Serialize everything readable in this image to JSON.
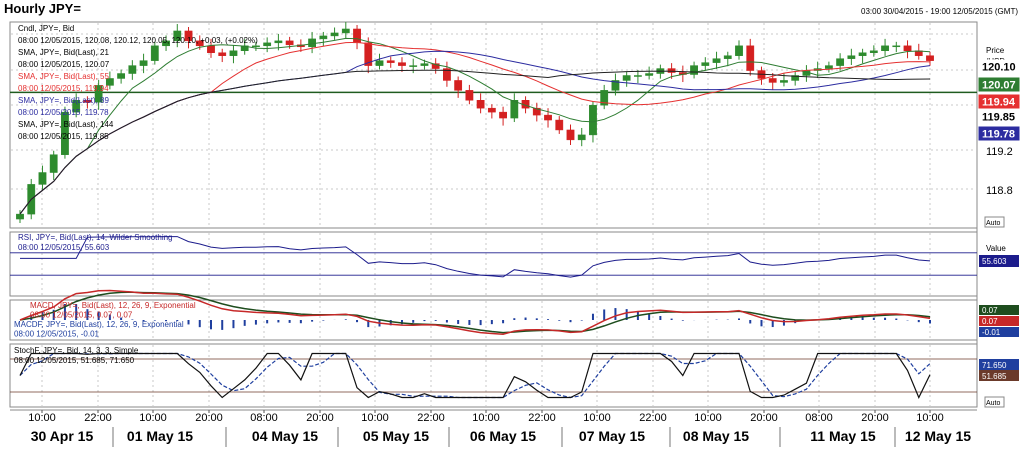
{
  "window": {
    "title": "Hourly JPY=",
    "date_range": "03:00 30/04/2015 - 19:00 12/05/2015 (GMT)"
  },
  "colors": {
    "candle_up": "#2e8b2e",
    "candle_down": "#d42020",
    "sma21": "#2e7d32",
    "sma55": "#e53030",
    "sma89": "#2c2ca0",
    "sma144": "#222222",
    "hline": "#1f5c1f",
    "rsi": "#1c1c8c",
    "macd": "#c62828",
    "macd_signal": "#1e4d1e",
    "macd_hist": "#1f3f9f",
    "stoch_k": "#111111",
    "stoch_d": "#1f3f9f",
    "ref_line": "#6b3a2a"
  },
  "legend": {
    "main": [
      {
        "text": "Cndl, JPY=, Bid",
        "color": "#000000"
      },
      {
        "text": "08:00 12/05/2015, 120.08, 120.12, 120.05, 120.10, +0.03, (+0.02%)",
        "color": "#000000"
      },
      {
        "text": "SMA, JPY=, Bid(Last), 21",
        "color": "#000000"
      },
      {
        "text": "08:00 12/05/2015, 120.07",
        "color": "#000000"
      },
      {
        "text": "SMA, JPY=, Bid(Last), 55",
        "color": "#e53030"
      },
      {
        "text": "08:00 12/05/2015, 119.94",
        "color": "#e53030"
      },
      {
        "text": "SMA, JPY=, Bid(Last), 89",
        "color": "#2c2ca0"
      },
      {
        "text": "08:00 12/05/2015, 119.78",
        "color": "#2c2ca0"
      },
      {
        "text": "SMA, JPY=, Bid(Last), 144",
        "color": "#000000"
      },
      {
        "text": "08:00 12/05/2015, 119.85",
        "color": "#000000"
      }
    ],
    "rsi": [
      {
        "text": "RSI, JPY=, Bid(Last), 14, Wilder Smoothing",
        "color": "#1c1c8c"
      },
      {
        "text": "08:00 12/05/2015, 55.603",
        "color": "#1c1c8c"
      }
    ],
    "macd": [
      {
        "text": "MACD, JPY=, Bid(Last), 12, 26, 9, Exponential",
        "color": "#c62828"
      },
      {
        "text": "08:00 12/05/2015, 0.07, 0.07",
        "color": "#c62828"
      },
      {
        "text": "MACDF, JPY=, Bid(Last), 12, 26, 9, Exponential",
        "color": "#1f3f9f"
      },
      {
        "text": "08:00 12/05/2015, -0.01",
        "color": "#1f3f9f"
      }
    ],
    "stoch": [
      {
        "text": "StochF, JPY=, Bid, 14, 3, 3, Simple",
        "color": "#000000"
      },
      {
        "text": "08:00 12/05/2015, 51.685, 71.650",
        "color": "#000000"
      }
    ]
  },
  "axis": {
    "price_label": "Price",
    "currency_label": "/USD",
    "value_label": "Value",
    "auto_label": "Auto",
    "price_ticks": [
      "119.2",
      "118.8"
    ],
    "flags": [
      {
        "text": "120.10",
        "bg": "#ffffff",
        "fg": "#000000",
        "bold": true
      },
      {
        "text": "120.07",
        "bg": "#2e7d32",
        "fg": "#ffffff",
        "bold": true
      },
      {
        "text": "119.94",
        "bg": "#e53030",
        "fg": "#ffffff",
        "bold": true
      },
      {
        "text": "119.85",
        "bg": "#ffffff",
        "fg": "#000000",
        "bold": true
      },
      {
        "text": "119.78",
        "bg": "#2c2ca0",
        "fg": "#ffffff",
        "bold": true
      }
    ],
    "rsi_flag": "55.603",
    "macd_flags": [
      "0.07",
      "0.07",
      "-0.01"
    ],
    "stoch_flags": [
      "71.650",
      "51.685"
    ],
    "time_ticks": [
      "10:00",
      "22:00",
      "10:00",
      "20:00",
      "08:00",
      "20:00",
      "10:00",
      "22:00",
      "10:00",
      "22:00",
      "10:00",
      "22:00",
      "10:00",
      "20:00",
      "08:00",
      "20:00",
      "10:00"
    ],
    "date_labels": [
      "30 Apr 15",
      "01 May 15",
      "04 May 15",
      "05 May 15",
      "06 May 15",
      "07 May 15",
      "08 May 15",
      "11 May 15",
      "12 May 15"
    ]
  },
  "chart_data": {
    "type": "candlestick",
    "instrument": "JPY=",
    "interval": "Hourly",
    "price_range": [
      118.45,
      120.45
    ],
    "support_line": 119.78,
    "closes": [
      118.55,
      118.85,
      118.97,
      119.15,
      119.58,
      119.7,
      119.68,
      119.85,
      119.92,
      119.97,
      120.05,
      120.1,
      120.25,
      120.3,
      120.4,
      120.3,
      120.25,
      120.18,
      120.15,
      120.2,
      120.25,
      120.25,
      120.28,
      120.3,
      120.26,
      120.24,
      120.32,
      120.35,
      120.38,
      120.42,
      120.28,
      120.05,
      120.1,
      120.08,
      120.05,
      120.05,
      120.07,
      120.02,
      119.9,
      119.8,
      119.7,
      119.62,
      119.58,
      119.52,
      119.7,
      119.62,
      119.55,
      119.5,
      119.4,
      119.3,
      119.35,
      119.65,
      119.8,
      119.9,
      119.95,
      119.95,
      119.97,
      120.02,
      119.98,
      119.96,
      120.05,
      120.08,
      120.12,
      120.15,
      120.25,
      120.0,
      119.92,
      119.88,
      119.9,
      119.95,
      120.0,
      120.02,
      120.05,
      120.12,
      120.15,
      120.18,
      120.2,
      120.25,
      120.25,
      120.2,
      120.15,
      120.1
    ],
    "indicators": {
      "sma21": 120.07,
      "sma55": 119.94,
      "sma89": 119.78,
      "sma144": 119.85,
      "rsi14": 55.603,
      "macd": 0.07,
      "macd_signal": 0.07,
      "macd_histogram": -0.01,
      "stoch_k": 51.685,
      "stoch_d": 71.65
    }
  }
}
